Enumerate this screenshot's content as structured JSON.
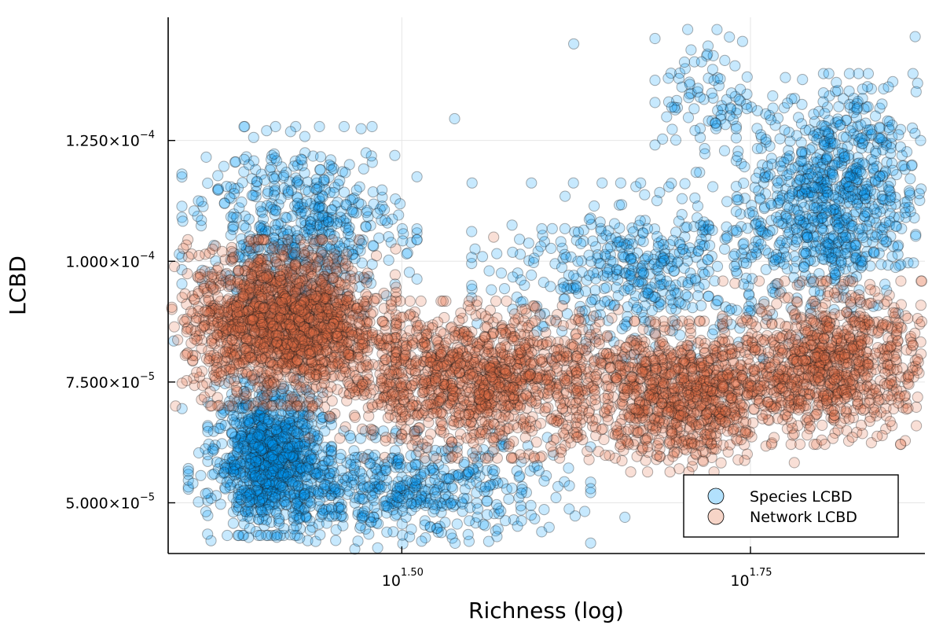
{
  "chart_data": {
    "type": "scatter",
    "title": "",
    "xlabel": "Richness (log)",
    "ylabel": "LCBD",
    "x_scale": "log10",
    "xlim": [
      21.5,
      75.0
    ],
    "ylim": [
      3.95e-05,
      0.0001505
    ],
    "grid": true,
    "legend_position": "bottom-right",
    "x_ticks": [
      {
        "value": 31.62,
        "base": "10",
        "exponent": "1.50"
      },
      {
        "value": 56.23,
        "base": "10",
        "exponent": "1.75"
      }
    ],
    "y_ticks": [
      {
        "value": 5e-05,
        "mantissa": "5.000×10",
        "exponent": "−5"
      },
      {
        "value": 7.5e-05,
        "mantissa": "7.500×10",
        "exponent": "−5"
      },
      {
        "value": 0.0001,
        "mantissa": "1.000×10",
        "exponent": "−4"
      },
      {
        "value": 0.000125,
        "mantissa": "1.250×10",
        "exponent": "−4"
      }
    ],
    "series": [
      {
        "name": "Species LCBD",
        "color": "#009af9",
        "clusters": [
          {
            "x": [
              23.5,
              27.5
            ],
            "y": [
              4.7e-05,
              7.2e-05
            ],
            "n": 900,
            "note": "dense low-richness lower lobe"
          },
          {
            "x": [
              24.0,
              40.0
            ],
            "y": [
              4.3e-05,
              6.2e-05
            ],
            "n": 600,
            "note": "lower tail"
          },
          {
            "x": [
              23.0,
              31.0
            ],
            "y": [
              9.05e-05,
              0.000123
            ],
            "n": 550,
            "note": "upper-left plume"
          },
          {
            "x": [
              38.0,
              60.0
            ],
            "y": [
              8.4e-05,
              0.000112
            ],
            "n": 500,
            "note": "middle band"
          },
          {
            "x": [
              57.0,
              73.0
            ],
            "y": [
              9.4e-05,
              0.000133
            ],
            "n": 800,
            "note": "right cloud"
          },
          {
            "x": [
              49.0,
              56.0
            ],
            "y": [
              0.000122,
              0.000146
            ],
            "n": 90,
            "note": "upper outliers"
          }
        ],
        "points": [
          [
            21.7,
            8.35e-05
          ],
          [
            22.0,
            6.95e-05
          ],
          [
            22.6,
            0.0001125
          ],
          [
            21.9,
            0.0001015
          ],
          [
            34.5,
            0.0001295
          ],
          [
            42.0,
            0.000145
          ],
          [
            55.5,
            0.0001455
          ],
          [
            73.8,
            0.0001465
          ],
          [
            75.0,
            0.0001335
          ],
          [
            64.8,
            0.000137
          ],
          [
            36.5,
            4.2e-05
          ],
          [
            34.3,
            4.35e-05
          ],
          [
            45.7,
            4.7e-05
          ],
          [
            37.0,
            4.3e-05
          ],
          [
            74.3,
            0.000114
          ]
        ]
      },
      {
        "name": "Network LCBD",
        "color": "#e26f46",
        "clusters": [
          {
            "x": [
              22.5,
              30.0
            ],
            "y": [
              7.4e-05,
              0.0001005
            ],
            "n": 1700,
            "note": "dense left mass"
          },
          {
            "x": [
              29.0,
              45.0
            ],
            "y": [
              6.3e-05,
              8.8e-05
            ],
            "n": 1300,
            "note": "descending band"
          },
          {
            "x": [
              44.0,
              58.0
            ],
            "y": [
              6e-05,
              8.4e-05
            ],
            "n": 900,
            "note": "trough"
          },
          {
            "x": [
              56.0,
              74.0
            ],
            "y": [
              6.6e-05,
              9.2e-05
            ],
            "n": 900,
            "note": "rising right band"
          }
        ],
        "points": [
          [
            21.5,
            9.2e-05
          ],
          [
            22.1,
            8.75e-05
          ],
          [
            36.8,
            0.000105
          ],
          [
            74.6,
            8.75e-05
          ],
          [
            75.2,
            8.55e-05
          ],
          [
            73.0,
            7.6e-05
          ]
        ]
      }
    ]
  }
}
